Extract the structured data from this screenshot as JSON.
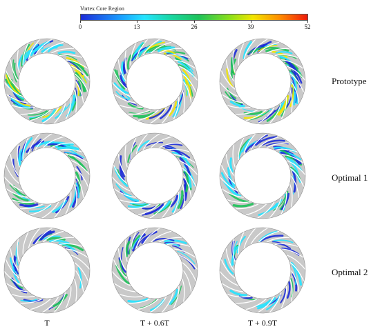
{
  "colorbar": {
    "title": "Vortex Core Region",
    "ticks": [
      "0",
      "13",
      "26",
      "39",
      "52"
    ],
    "values": [
      0,
      13,
      26,
      39,
      52
    ]
  },
  "rows": [
    {
      "label": "Prototype",
      "intensity": "high"
    },
    {
      "label": "Optimal 1",
      "intensity": "medium"
    },
    {
      "label": "Optimal 2",
      "intensity": "low"
    }
  ],
  "columns": [
    {
      "label": "T"
    },
    {
      "label": "T + 0.6T"
    },
    {
      "label": "T + 0.9T"
    }
  ],
  "colors": {
    "annulus": "#c9c9c9",
    "blade": "#ffffff",
    "low": "#1c2bd8",
    "cyan": "#25e3ff",
    "green": "#1ec25a",
    "yellow": "#f2e500"
  }
}
